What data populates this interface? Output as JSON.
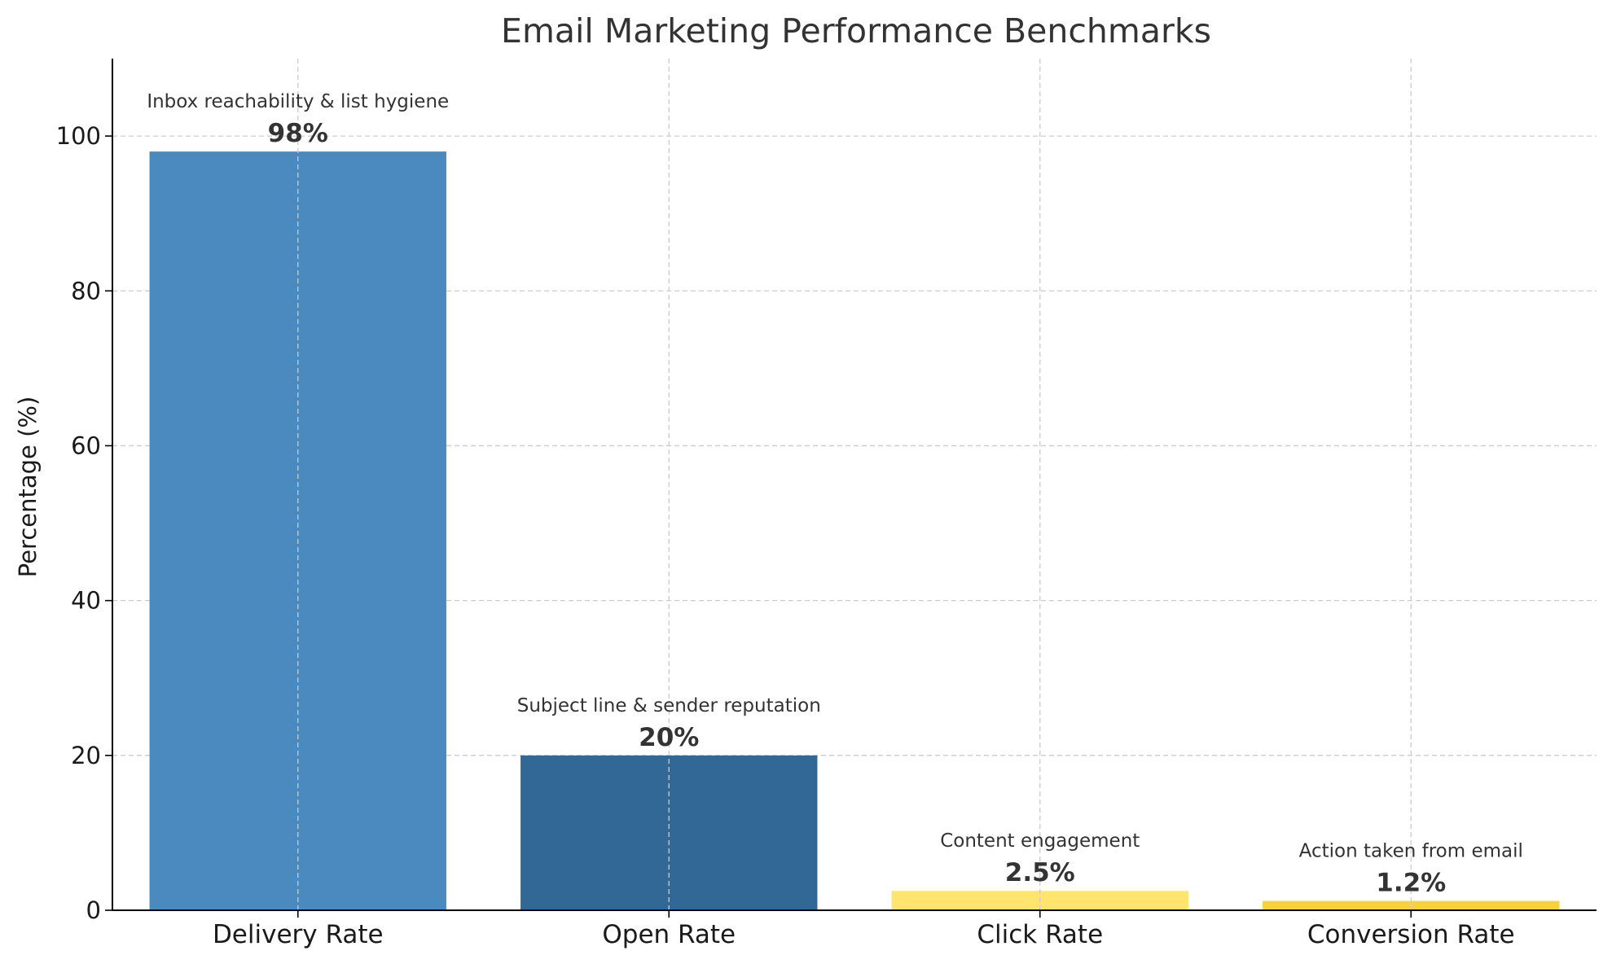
{
  "chart_data": {
    "type": "bar",
    "title": "Email Marketing Performance Benchmarks",
    "xlabel": "",
    "ylabel": "Percentage (%)",
    "ylim": [
      0,
      110
    ],
    "yticks": [
      0,
      20,
      40,
      60,
      80,
      100
    ],
    "grid": true,
    "legend": "none",
    "categories": [
      "Delivery Rate",
      "Open Rate",
      "Click Rate",
      "Conversion Rate"
    ],
    "values": [
      98,
      20,
      2.5,
      1.2
    ],
    "value_labels": [
      "98%",
      "20%",
      "2.5%",
      "1.2%"
    ],
    "annotations": [
      "Inbox reachability & list hygiene",
      "Subject line & sender reputation",
      "Content engagement",
      "Action taken from email"
    ],
    "colors": [
      "#4a8abe",
      "#326896",
      "#ffe56e",
      "#f8d13d"
    ],
    "text_color": "#333333",
    "grid_color": "#cccccc"
  }
}
